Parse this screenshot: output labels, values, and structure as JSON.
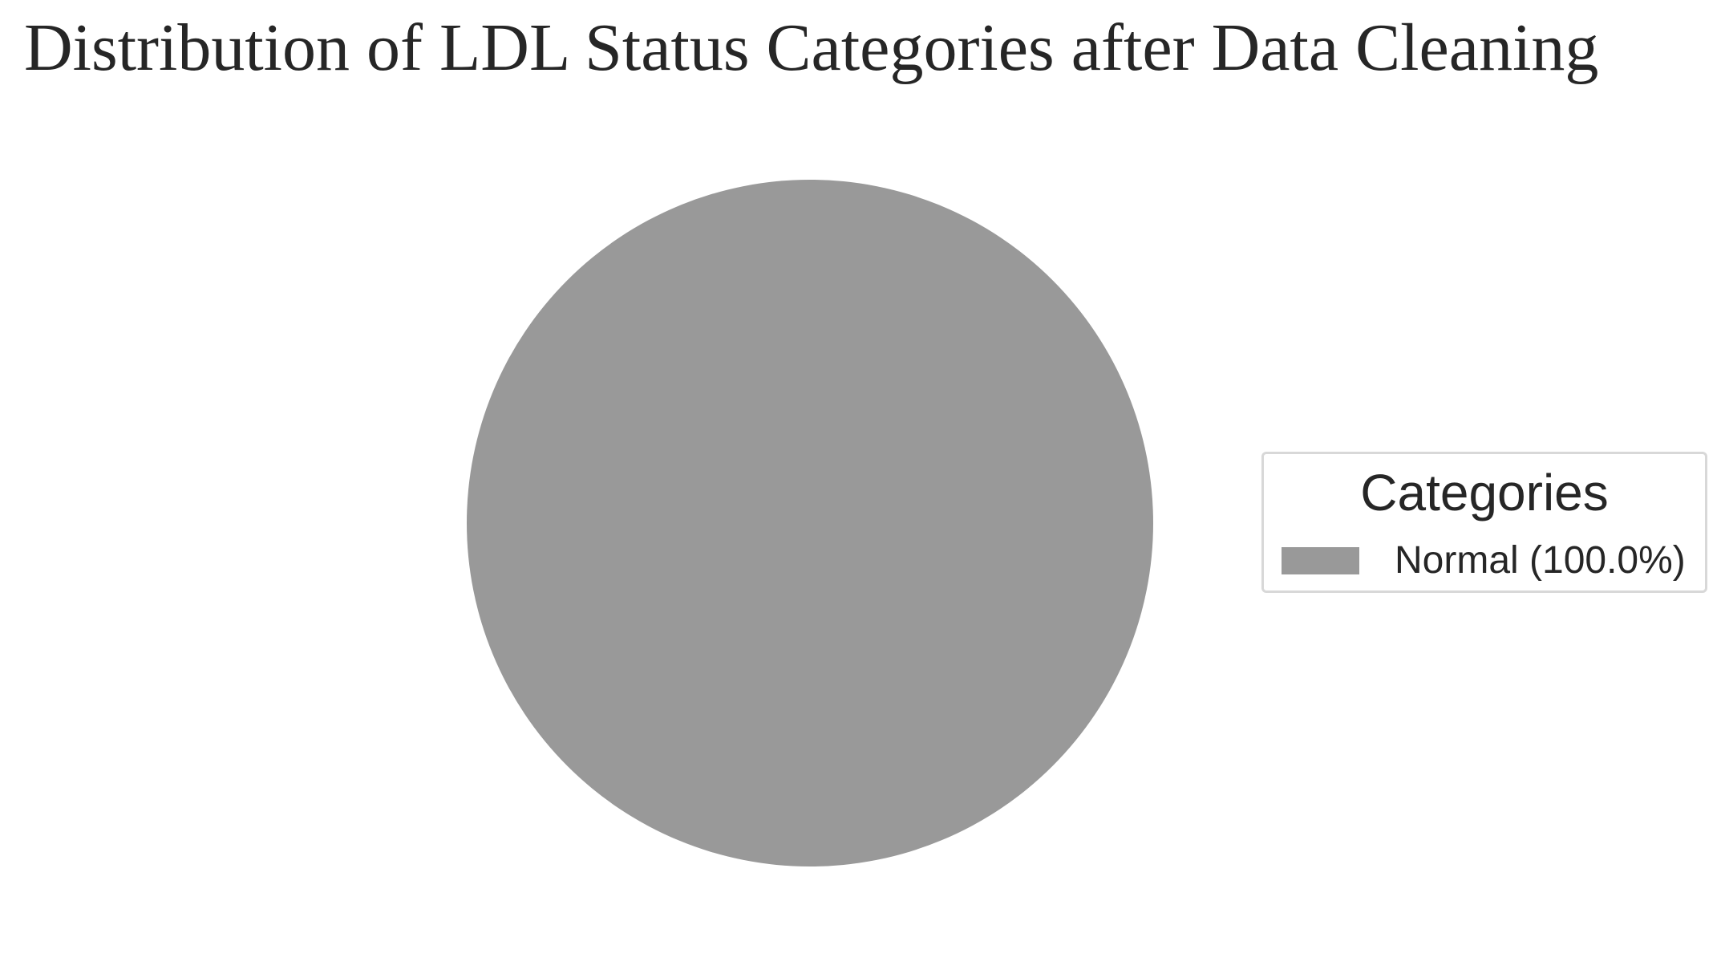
{
  "chart_data": {
    "type": "pie",
    "title": "Distribution of LDL Status Categories after Data Cleaning",
    "slices": [
      {
        "label": "Normal",
        "value": 100.0,
        "legend_text": "Normal (100.0%)",
        "color": "#999999"
      }
    ],
    "legend": {
      "title": "Categories",
      "placement": "right"
    },
    "slice_labels_shown": false
  }
}
